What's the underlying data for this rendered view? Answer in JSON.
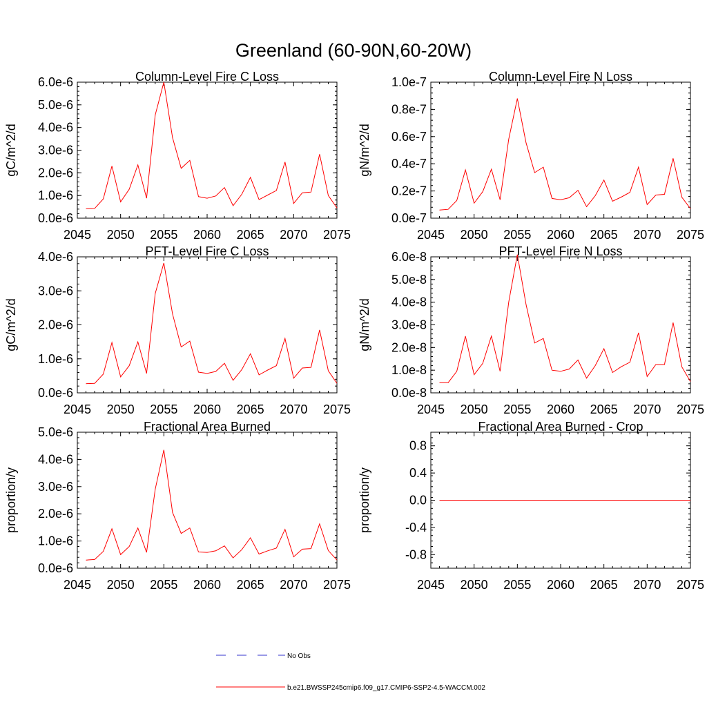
{
  "figure": {
    "title": "Greenland (60-90N,60-20W)"
  },
  "legend": [
    {
      "label": "No Obs",
      "color": "#3333cc",
      "dash": true
    },
    {
      "label": "b.e21.BWSSP245cmip6.f09_g17.CMIP6-SSP2-4.5-WACCM.002",
      "color": "#ff0000",
      "dash": false
    }
  ],
  "chart_data": [
    {
      "type": "line",
      "title": "Column-Level Fire C Loss",
      "xlabel": "",
      "ylabel": "gC/m^2/d",
      "xlim": [
        2045,
        2075
      ],
      "ylim": [
        0,
        6e-06
      ],
      "x_ticks": [
        "2045",
        "2050",
        "2055",
        "2060",
        "2065",
        "2070",
        "2075"
      ],
      "y_tick_values": [
        0,
        1e-06,
        2e-06,
        3e-06,
        4e-06,
        5e-06,
        6e-06
      ],
      "y_ticks": [
        "0.0e-6",
        "1.0e-6",
        "2.0e-6",
        "3.0e-6",
        "4.0e-6",
        "5.0e-6",
        "6.0e-6"
      ],
      "series": [
        {
          "color": "#ff0000",
          "x": [
            2046,
            2047,
            2048,
            2049,
            2050,
            2051,
            2052,
            2053,
            2054,
            2055,
            2056,
            2057,
            2058,
            2059,
            2060,
            2061,
            2062,
            2063,
            2064,
            2065,
            2066,
            2067,
            2068,
            2069,
            2070,
            2071,
            2072,
            2073,
            2074,
            2075
          ],
          "y": [
            4.2e-07,
            4.3e-07,
            8.5e-07,
            2.3e-06,
            7.2e-07,
            1.28e-06,
            2.35e-06,
            8.8e-07,
            4.55e-06,
            6e-06,
            3.55e-06,
            2.2e-06,
            2.55e-06,
            9.5e-07,
            8.8e-07,
            9.8e-07,
            1.35e-06,
            5.5e-07,
            1.05e-06,
            1.8e-06,
            8.2e-07,
            1.02e-06,
            1.22e-06,
            2.48e-06,
            6.5e-07,
            1.12e-06,
            1.15e-06,
            2.82e-06,
            1e-06,
            4.5e-07
          ]
        }
      ]
    },
    {
      "type": "line",
      "title": "Column-Level Fire N Loss",
      "xlabel": "",
      "ylabel": "gN/m^2/d",
      "xlim": [
        2045,
        2075
      ],
      "ylim": [
        0,
        1e-07
      ],
      "x_ticks": [
        "2045",
        "2050",
        "2055",
        "2060",
        "2065",
        "2070",
        "2075"
      ],
      "y_tick_values": [
        0,
        2e-08,
        4e-08,
        6e-08,
        8e-08,
        1e-07
      ],
      "y_ticks": [
        "0.0e-7",
        "0.2e-7",
        "0.4e-7",
        "0.6e-7",
        "0.8e-7",
        "1.0e-7"
      ],
      "series": [
        {
          "color": "#ff0000",
          "x": [
            2046,
            2047,
            2048,
            2049,
            2050,
            2051,
            2052,
            2053,
            2054,
            2055,
            2056,
            2057,
            2058,
            2059,
            2060,
            2061,
            2062,
            2063,
            2064,
            2065,
            2066,
            2067,
            2068,
            2069,
            2070,
            2071,
            2072,
            2073,
            2074,
            2075
          ],
          "y": [
            6e-09,
            6.5e-09,
            1.3e-08,
            3.55e-08,
            1.1e-08,
            1.95e-08,
            3.6e-08,
            1.35e-08,
            5.8e-08,
            8.8e-08,
            5.55e-08,
            3.35e-08,
            3.75e-08,
            1.45e-08,
            1.35e-08,
            1.5e-08,
            2.05e-08,
            8.5e-09,
            1.65e-08,
            2.8e-08,
            1.25e-08,
            1.55e-08,
            1.9e-08,
            3.75e-08,
            1e-08,
            1.7e-08,
            1.75e-08,
            4.4e-08,
            1.55e-08,
            7e-09
          ]
        }
      ]
    },
    {
      "type": "line",
      "title": "PFT-Level Fire C Loss",
      "xlabel": "",
      "ylabel": "gC/m^2/d",
      "xlim": [
        2045,
        2075
      ],
      "ylim": [
        0,
        4e-06
      ],
      "x_ticks": [
        "2045",
        "2050",
        "2055",
        "2060",
        "2065",
        "2070",
        "2075"
      ],
      "y_tick_values": [
        0,
        1e-06,
        2e-06,
        3e-06,
        4e-06
      ],
      "y_ticks": [
        "0.0e-6",
        "1.0e-6",
        "2.0e-6",
        "3.0e-6",
        "4.0e-6"
      ],
      "series": [
        {
          "color": "#ff0000",
          "x": [
            2046,
            2047,
            2048,
            2049,
            2050,
            2051,
            2052,
            2053,
            2054,
            2055,
            2056,
            2057,
            2058,
            2059,
            2060,
            2061,
            2062,
            2063,
            2064,
            2065,
            2066,
            2067,
            2068,
            2069,
            2070,
            2071,
            2072,
            2073,
            2074,
            2075
          ],
          "y": [
            2.7e-07,
            2.8e-07,
            5.5e-07,
            1.48e-06,
            4.7e-07,
            8e-07,
            1.5e-06,
            5.7e-07,
            2.92e-06,
            3.82e-06,
            2.32e-06,
            1.35e-06,
            1.52e-06,
            6.1e-07,
            5.7e-07,
            6.3e-07,
            8.7e-07,
            3.7e-07,
            6.8e-07,
            1.15e-06,
            5.3e-07,
            6.7e-07,
            8e-07,
            1.6e-06,
            4.3e-07,
            7.3e-07,
            7.5e-07,
            1.85e-06,
            6.5e-07,
            2.8e-07
          ]
        }
      ]
    },
    {
      "type": "line",
      "title": "PFT-Level Fire N Loss",
      "xlabel": "",
      "ylabel": "gN/m^2/d",
      "xlim": [
        2045,
        2075
      ],
      "ylim": [
        0,
        6e-08
      ],
      "x_ticks": [
        "2045",
        "2050",
        "2055",
        "2060",
        "2065",
        "2070",
        "2075"
      ],
      "y_tick_values": [
        0,
        1e-08,
        2e-08,
        3e-08,
        4e-08,
        5e-08,
        6e-08
      ],
      "y_ticks": [
        "0.0e-8",
        "1.0e-8",
        "2.0e-8",
        "3.0e-8",
        "4.0e-8",
        "5.0e-8",
        "6.0e-8"
      ],
      "series": [
        {
          "color": "#ff0000",
          "x": [
            2046,
            2047,
            2048,
            2049,
            2050,
            2051,
            2052,
            2053,
            2054,
            2055,
            2056,
            2057,
            2058,
            2059,
            2060,
            2061,
            2062,
            2063,
            2064,
            2065,
            2066,
            2067,
            2068,
            2069,
            2070,
            2071,
            2072,
            2073,
            2074,
            2075
          ],
          "y": [
            4.5e-09,
            4.5e-09,
            9.5e-09,
            2.5e-08,
            8e-09,
            1.3e-08,
            2.5e-08,
            9.5e-09,
            4e-08,
            6.1e-08,
            3.9e-08,
            2.2e-08,
            2.4e-08,
            1e-08,
            9.5e-09,
            1.05e-08,
            1.45e-08,
            6.5e-09,
            1.2e-08,
            1.95e-08,
            9e-09,
            1.15e-08,
            1.35e-08,
            2.65e-08,
            7.2e-09,
            1.25e-08,
            1.25e-08,
            3.1e-08,
            1.15e-08,
            5e-09
          ]
        }
      ]
    },
    {
      "type": "line",
      "title": "Fractional Area Burned",
      "xlabel": "",
      "ylabel": "proportion/y",
      "xlim": [
        2045,
        2075
      ],
      "ylim": [
        0,
        5e-06
      ],
      "x_ticks": [
        "2045",
        "2050",
        "2055",
        "2060",
        "2065",
        "2070",
        "2075"
      ],
      "y_tick_values": [
        0,
        1e-06,
        2e-06,
        3e-06,
        4e-06,
        5e-06
      ],
      "y_ticks": [
        "0.0e-6",
        "1.0e-6",
        "2.0e-6",
        "3.0e-6",
        "4.0e-6",
        "5.0e-6"
      ],
      "series": [
        {
          "color": "#ff0000",
          "x": [
            2046,
            2047,
            2048,
            2049,
            2050,
            2051,
            2052,
            2053,
            2054,
            2055,
            2056,
            2057,
            2058,
            2059,
            2060,
            2061,
            2062,
            2063,
            2064,
            2065,
            2066,
            2067,
            2068,
            2069,
            2070,
            2071,
            2072,
            2073,
            2074,
            2075
          ],
          "y": [
            3e-07,
            3.2e-07,
            6.2e-07,
            1.45e-06,
            5e-07,
            8e-07,
            1.48e-06,
            5.8e-07,
            2.9e-06,
            4.35e-06,
            2.05e-06,
            1.28e-06,
            1.48e-06,
            6e-07,
            5.8e-07,
            6.4e-07,
            8.2e-07,
            3.8e-07,
            6.8e-07,
            1.12e-06,
            5.2e-07,
            6.4e-07,
            7.4e-07,
            1.43e-06,
            4.2e-07,
            7e-07,
            7.2e-07,
            1.63e-06,
            6.5e-07,
            3e-07
          ]
        }
      ]
    },
    {
      "type": "line",
      "title": "Fractional Area Burned - Crop",
      "xlabel": "",
      "ylabel": "proportion/y",
      "xlim": [
        2045,
        2075
      ],
      "ylim": [
        -1.0,
        1.0
      ],
      "x_ticks": [
        "2045",
        "2050",
        "2055",
        "2060",
        "2065",
        "2070",
        "2075"
      ],
      "y_tick_values": [
        -0.8,
        -0.4,
        0.0,
        0.4,
        0.8
      ],
      "y_ticks": [
        "-0.8",
        "-0.4",
        "0.0",
        "0.4",
        "0.8"
      ],
      "series": [
        {
          "color": "#ff0000",
          "x": [
            2046,
            2047,
            2048,
            2049,
            2050,
            2051,
            2052,
            2053,
            2054,
            2055,
            2056,
            2057,
            2058,
            2059,
            2060,
            2061,
            2062,
            2063,
            2064,
            2065,
            2066,
            2067,
            2068,
            2069,
            2070,
            2071,
            2072,
            2073,
            2074,
            2075
          ],
          "y": [
            0,
            0,
            0,
            0,
            0,
            0,
            0,
            0,
            0,
            0,
            0,
            0,
            0,
            0,
            0,
            0,
            0,
            0,
            0,
            0,
            0,
            0,
            0,
            0,
            0,
            0,
            0,
            0,
            0,
            0
          ]
        }
      ]
    }
  ]
}
